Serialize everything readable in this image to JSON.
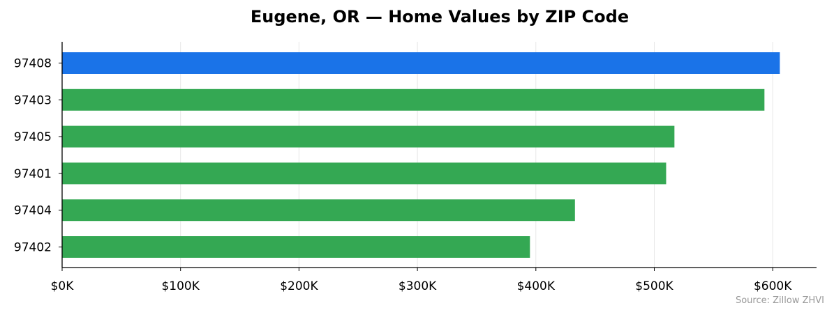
{
  "chart_data": {
    "type": "bar",
    "orientation": "horizontal",
    "title": "Eugene, OR — Home Values by ZIP Code",
    "categories": [
      "97408",
      "97403",
      "97405",
      "97401",
      "97404",
      "97402"
    ],
    "values": [
      606000,
      593000,
      517000,
      510000,
      433000,
      395000
    ],
    "highlight_category": "97408",
    "colors": {
      "highlight": "#1a73e8",
      "default": "#34a853",
      "grid": "#e6e6e6",
      "axis": "#000000"
    },
    "xlim": [
      0,
      637000
    ],
    "xticks": [
      0,
      100000,
      200000,
      300000,
      400000,
      500000,
      600000
    ],
    "xtick_labels": [
      "$0K",
      "$100K",
      "$200K",
      "$300K",
      "$400K",
      "$500K",
      "$600K"
    ],
    "xlabel": "",
    "ylabel": "",
    "grid": "vertical",
    "legend": "none"
  },
  "source": "Source: Zillow ZHVI"
}
